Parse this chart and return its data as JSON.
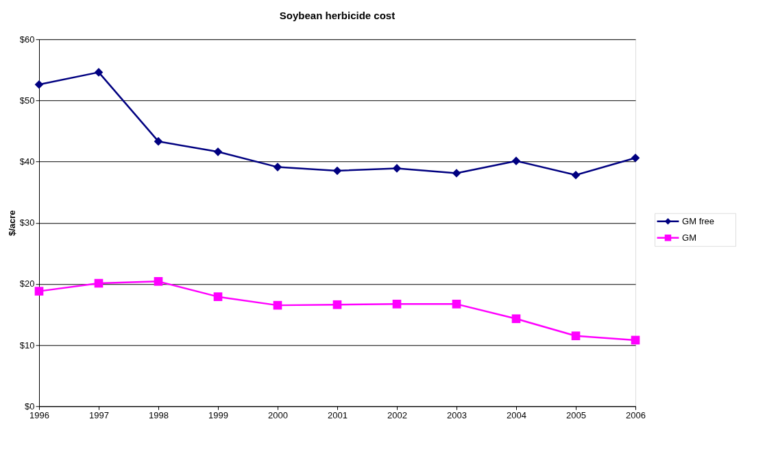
{
  "chart_data": {
    "type": "line",
    "title": "Soybean herbicide cost",
    "ylabel": "$/acre",
    "x": [
      1996,
      1997,
      1998,
      1999,
      2000,
      2001,
      2002,
      2003,
      2004,
      2005,
      2006
    ],
    "xlim": [
      1996,
      2006
    ],
    "xticks": [
      1996,
      1997,
      1998,
      1999,
      2000,
      2001,
      2002,
      2003,
      2004,
      2005,
      2006
    ],
    "ylim": [
      0,
      60
    ],
    "yticks": [
      {
        "value": 0,
        "label": "$0"
      },
      {
        "value": 10,
        "label": "$10"
      },
      {
        "value": 20,
        "label": "$20"
      },
      {
        "value": 30,
        "label": "$30"
      },
      {
        "value": 40,
        "label": "$40"
      },
      {
        "value": 50,
        "label": "$50"
      },
      {
        "value": 60,
        "label": "$60"
      }
    ],
    "grid": "y",
    "legend": "right",
    "line_style": "solid",
    "series": [
      {
        "name": "GM free",
        "color": "#000080",
        "marker": "diamond",
        "values": [
          52.6,
          54.6,
          43.3,
          41.6,
          39.1,
          38.5,
          38.9,
          38.1,
          40.1,
          37.8,
          40.6
        ]
      },
      {
        "name": "GM",
        "color": "#ff00ff",
        "marker": "square",
        "values": [
          18.8,
          20.1,
          20.4,
          17.9,
          16.5,
          16.6,
          16.7,
          16.7,
          14.3,
          11.5,
          10.8
        ]
      }
    ]
  }
}
